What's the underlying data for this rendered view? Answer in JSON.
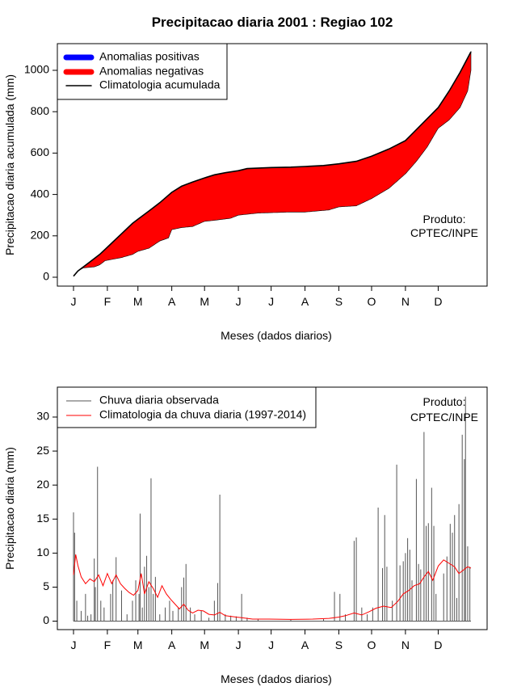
{
  "figure_title": "Precipitacao diaria 2001 : Regiao 102",
  "chart_data": [
    {
      "type": "area",
      "id": "cumulative",
      "title": "Precipitacao diaria 2001 : Regiao 102",
      "xlabel": "Meses (dados diarios)",
      "ylabel": "Precipitacao diaria acumulada (mm)",
      "xlim": [
        1,
        365
      ],
      "ylim": [
        0,
        1100
      ],
      "month_labels": [
        "J",
        "F",
        "M",
        "A",
        "M",
        "J",
        "J",
        "A",
        "S",
        "O",
        "N",
        "D"
      ],
      "month_days": [
        1,
        32,
        60,
        91,
        121,
        152,
        182,
        213,
        244,
        274,
        305,
        335
      ],
      "yticks": [
        0,
        200,
        400,
        600,
        800,
        1000
      ],
      "legend": [
        "Anomalias positivas",
        "Anomalias negativas",
        "Climatologia acumulada"
      ],
      "legend_colors": [
        "#0000ff",
        "#ff0000",
        "#000000"
      ],
      "credit": [
        "Produto:",
        "CPTEC/INPE"
      ],
      "climatology_points": [
        [
          1,
          5
        ],
        [
          5,
          30
        ],
        [
          15,
          70
        ],
        [
          25,
          110
        ],
        [
          35,
          160
        ],
        [
          45,
          210
        ],
        [
          55,
          260
        ],
        [
          60,
          280
        ],
        [
          70,
          320
        ],
        [
          80,
          360
        ],
        [
          91,
          410
        ],
        [
          100,
          440
        ],
        [
          110,
          460
        ],
        [
          121,
          480
        ],
        [
          130,
          495
        ],
        [
          140,
          505
        ],
        [
          152,
          515
        ],
        [
          160,
          525
        ],
        [
          182,
          530
        ],
        [
          200,
          532
        ],
        [
          213,
          535
        ],
        [
          230,
          540
        ],
        [
          244,
          548
        ],
        [
          260,
          560
        ],
        [
          274,
          585
        ],
        [
          290,
          620
        ],
        [
          305,
          660
        ],
        [
          320,
          740
        ],
        [
          335,
          820
        ],
        [
          345,
          900
        ],
        [
          355,
          990
        ],
        [
          365,
          1090
        ]
      ],
      "observed_points": [
        [
          1,
          5
        ],
        [
          5,
          30
        ],
        [
          10,
          45
        ],
        [
          20,
          50
        ],
        [
          25,
          60
        ],
        [
          30,
          80
        ],
        [
          35,
          85
        ],
        [
          45,
          95
        ],
        [
          55,
          110
        ],
        [
          60,
          125
        ],
        [
          70,
          140
        ],
        [
          80,
          175
        ],
        [
          88,
          190
        ],
        [
          91,
          230
        ],
        [
          100,
          240
        ],
        [
          110,
          245
        ],
        [
          121,
          270
        ],
        [
          130,
          275
        ],
        [
          145,
          285
        ],
        [
          152,
          300
        ],
        [
          170,
          310
        ],
        [
          200,
          315
        ],
        [
          213,
          315
        ],
        [
          235,
          325
        ],
        [
          244,
          340
        ],
        [
          260,
          345
        ],
        [
          274,
          380
        ],
        [
          290,
          430
        ],
        [
          305,
          500
        ],
        [
          315,
          560
        ],
        [
          325,
          630
        ],
        [
          335,
          720
        ],
        [
          345,
          760
        ],
        [
          355,
          820
        ],
        [
          362,
          900
        ],
        [
          365,
          1000
        ]
      ]
    },
    {
      "type": "bar+line",
      "id": "daily",
      "xlabel": "Meses (dados diarios)",
      "ylabel": "Precipitacao diaria (mm)",
      "xlim": [
        1,
        365
      ],
      "ylim": [
        0,
        33
      ],
      "month_labels": [
        "J",
        "F",
        "M",
        "A",
        "M",
        "J",
        "J",
        "A",
        "S",
        "O",
        "N",
        "D"
      ],
      "month_days": [
        1,
        32,
        60,
        91,
        121,
        152,
        182,
        213,
        244,
        274,
        305,
        335
      ],
      "yticks": [
        0,
        5,
        10,
        15,
        20,
        25,
        30
      ],
      "legend": [
        "Chuva diaria observada",
        "Climatologia da chuva diaria (1997-2014)"
      ],
      "legend_colors": [
        "#555555",
        "#ff0000"
      ],
      "credit": [
        "Produto:",
        "CPTEC/INPE"
      ],
      "observed_bars": [
        [
          1,
          16
        ],
        [
          2,
          13
        ],
        [
          4,
          3
        ],
        [
          8,
          1.5
        ],
        [
          12,
          4
        ],
        [
          14,
          0.8
        ],
        [
          17,
          1
        ],
        [
          20,
          9.2
        ],
        [
          21,
          5
        ],
        [
          23,
          22.7
        ],
        [
          26,
          3
        ],
        [
          29,
          2
        ],
        [
          35,
          4
        ],
        [
          37,
          6
        ],
        [
          40,
          9.4
        ],
        [
          45,
          4.5
        ],
        [
          50,
          1
        ],
        [
          55,
          3
        ],
        [
          58,
          6
        ],
        [
          61,
          4
        ],
        [
          62,
          15.8
        ],
        [
          64,
          2
        ],
        [
          66,
          8
        ],
        [
          68,
          9.6
        ],
        [
          70,
          5
        ],
        [
          72,
          21
        ],
        [
          74,
          4
        ],
        [
          76,
          6.5
        ],
        [
          80,
          1
        ],
        [
          85,
          2
        ],
        [
          89,
          3
        ],
        [
          92,
          1.5
        ],
        [
          97,
          2
        ],
        [
          100,
          5
        ],
        [
          102,
          6.4
        ],
        [
          104,
          8.4
        ],
        [
          108,
          2
        ],
        [
          112,
          1
        ],
        [
          118,
          1.5
        ],
        [
          125,
          0.5
        ],
        [
          130,
          3
        ],
        [
          133,
          5.6
        ],
        [
          135,
          18.6
        ],
        [
          140,
          1
        ],
        [
          145,
          0.8
        ],
        [
          150,
          0.7
        ],
        [
          155,
          4
        ],
        [
          160,
          0.5
        ],
        [
          170,
          0.3
        ],
        [
          200,
          0.2
        ],
        [
          230,
          0.3
        ],
        [
          240,
          4.3
        ],
        [
          245,
          4
        ],
        [
          250,
          1
        ],
        [
          258,
          11.8
        ],
        [
          260,
          12.3
        ],
        [
          265,
          2
        ],
        [
          270,
          1
        ],
        [
          275,
          2
        ],
        [
          280,
          16.7
        ],
        [
          284,
          7.8
        ],
        [
          286,
          15.6
        ],
        [
          288,
          8
        ],
        [
          293,
          3
        ],
        [
          297,
          23
        ],
        [
          300,
          8.2
        ],
        [
          303,
          8.8
        ],
        [
          305,
          10
        ],
        [
          307,
          12.2
        ],
        [
          309,
          10.5
        ],
        [
          311,
          6
        ],
        [
          315,
          20.9
        ],
        [
          317,
          8.4
        ],
        [
          319,
          7.6
        ],
        [
          322,
          27.8
        ],
        [
          324,
          14
        ],
        [
          326,
          14.4
        ],
        [
          329,
          19.6
        ],
        [
          331,
          14
        ],
        [
          333,
          4
        ],
        [
          340,
          7
        ],
        [
          343,
          9.5
        ],
        [
          346,
          14.3
        ],
        [
          348,
          13
        ],
        [
          350,
          15.6
        ],
        [
          352,
          3.4
        ],
        [
          354,
          17.2
        ],
        [
          357,
          27.4
        ],
        [
          359,
          23.8
        ],
        [
          360,
          33
        ],
        [
          362,
          11
        ],
        [
          364,
          8
        ]
      ],
      "climatology_line": [
        [
          1,
          6.8
        ],
        [
          3,
          9.8
        ],
        [
          5,
          8.2
        ],
        [
          8,
          6.5
        ],
        [
          12,
          5.5
        ],
        [
          16,
          6.2
        ],
        [
          20,
          5.8
        ],
        [
          24,
          6.8
        ],
        [
          28,
          5.2
        ],
        [
          32,
          7
        ],
        [
          36,
          5.5
        ],
        [
          40,
          6.8
        ],
        [
          44,
          5.5
        ],
        [
          48,
          4.8
        ],
        [
          52,
          4.2
        ],
        [
          56,
          3.8
        ],
        [
          60,
          4.5
        ],
        [
          63,
          7
        ],
        [
          66,
          4
        ],
        [
          70,
          5.8
        ],
        [
          74,
          4.8
        ],
        [
          78,
          3.5
        ],
        [
          82,
          5.2
        ],
        [
          86,
          4
        ],
        [
          90,
          3.2
        ],
        [
          94,
          2.5
        ],
        [
          98,
          1.8
        ],
        [
          102,
          2.5
        ],
        [
          106,
          1.6
        ],
        [
          110,
          1.2
        ],
        [
          115,
          1.6
        ],
        [
          120,
          1.5
        ],
        [
          125,
          1.0
        ],
        [
          130,
          0.9
        ],
        [
          135,
          1.3
        ],
        [
          140,
          0.8
        ],
        [
          145,
          0.7
        ],
        [
          150,
          0.6
        ],
        [
          155,
          0.5
        ],
        [
          165,
          0.3
        ],
        [
          180,
          0.3
        ],
        [
          200,
          0.25
        ],
        [
          220,
          0.3
        ],
        [
          235,
          0.4
        ],
        [
          244,
          0.6
        ],
        [
          250,
          0.8
        ],
        [
          258,
          1.2
        ],
        [
          265,
          0.9
        ],
        [
          272,
          1.4
        ],
        [
          278,
          1.9
        ],
        [
          285,
          2.2
        ],
        [
          292,
          2.0
        ],
        [
          298,
          2.9
        ],
        [
          303,
          4.0
        ],
        [
          308,
          4.5
        ],
        [
          313,
          5.2
        ],
        [
          318,
          5.5
        ],
        [
          322,
          6.5
        ],
        [
          326,
          7.3
        ],
        [
          330,
          6.0
        ],
        [
          335,
          8.1
        ],
        [
          340,
          9.0
        ],
        [
          345,
          8.5
        ],
        [
          350,
          8.0
        ],
        [
          354,
          7.0
        ],
        [
          358,
          7.5
        ],
        [
          362,
          8.0
        ],
        [
          365,
          7.8
        ]
      ]
    }
  ]
}
